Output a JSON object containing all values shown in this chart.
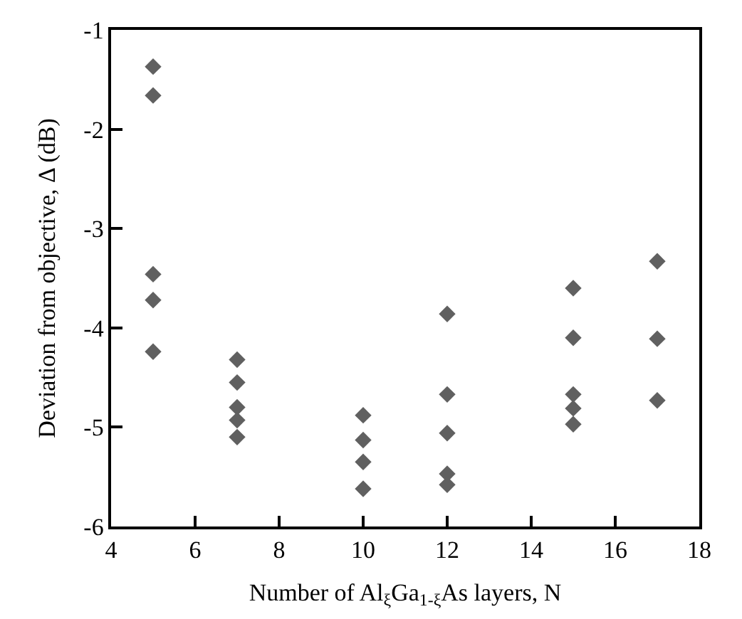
{
  "chart_data": {
    "type": "scatter",
    "xlabel": "Number of Al$_{ξ}$Ga$_{1-ξ}$As layers, N",
    "ylabel": "Deviation from objective, Δ (dB)",
    "x": [
      5,
      5,
      5,
      5,
      5,
      7,
      7,
      7,
      7,
      7,
      10,
      10,
      10,
      10,
      12,
      12,
      12,
      12,
      12,
      15,
      15,
      15,
      15,
      15,
      17,
      17,
      17
    ],
    "series": [
      {
        "color": "#606060",
        "values": [
          -1.37,
          -1.66,
          -3.46,
          -3.72,
          -4.24,
          -4.32,
          -4.55,
          -4.8,
          -4.93,
          -5.1,
          -4.88,
          -5.13,
          -5.35,
          -5.62,
          -3.86,
          -4.67,
          -5.06,
          -5.47,
          -5.58,
          -3.6,
          -4.1,
          -4.67,
          -4.81,
          -4.97,
          -3.33,
          -4.11,
          -4.73
        ]
      }
    ],
    "xlim": [
      4,
      18
    ],
    "xticks": [
      4,
      6,
      8,
      10,
      12,
      14,
      16,
      18
    ],
    "ylim": [
      -6,
      -1
    ],
    "yticks": [
      -6,
      -5,
      -4,
      -3,
      -2,
      -1
    ],
    "marker": "diamond"
  }
}
